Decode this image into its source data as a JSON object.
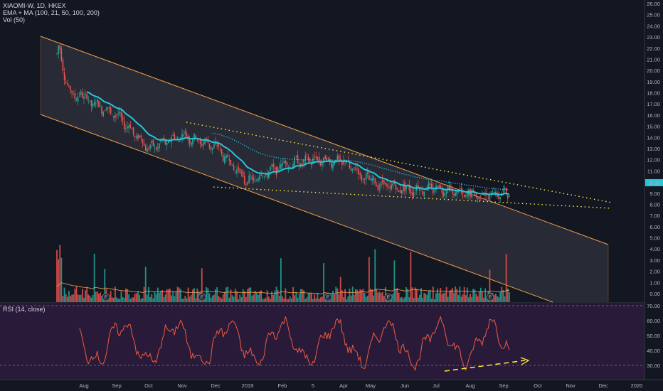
{
  "legend": {
    "symbol": "XIAOMI-W, 1D, HKEX",
    "ma": "EMA + MA (100, 21, 50, 100, 200)",
    "vol": "Vol (50)"
  },
  "rsi_legend": "RSI (14, close)",
  "last_price_label": "9.00",
  "colors": {
    "background": "#131722",
    "rsi_background": "#2a1a3a",
    "channel": "#f0a04b",
    "ema": "#26c6da",
    "ma_dotted": "#26c6da",
    "trendline": "#ffeb3b",
    "up": "#26a69a",
    "down": "#ef5350",
    "rsi_line": "#f05a3c",
    "volume_ma": "#f0a04b",
    "arrow": "#ffeb3b"
  },
  "earnings_marker": "E",
  "chart_data": {
    "type": "candlestick",
    "x_axis_labels": [
      "Aug",
      "Sep",
      "Oct",
      "Nov",
      "Dec",
      "2019",
      "Feb",
      "5",
      "Apr",
      "May",
      "Jun",
      "Jul",
      "Aug",
      "Sep",
      "Oct",
      "Nov",
      "Dec",
      "2020"
    ],
    "price_axis": {
      "ticks": [
        "26.00",
        "25.00",
        "24.00",
        "23.00",
        "22.00",
        "21.00",
        "20.00",
        "19.00",
        "18.00",
        "17.00",
        "16.00",
        "15.00",
        "14.00",
        "13.00",
        "12.00",
        "11.00",
        "10.00",
        "9.00",
        "8.00",
        "7.00",
        "6.00",
        "5.00",
        "4.00",
        "3.00",
        "2.00",
        "1.00",
        "0.00"
      ],
      "ylim": [
        0,
        26
      ]
    },
    "rsi_axis": {
      "ticks": [
        "70.00",
        "60.00",
        "50.00",
        "40.00",
        "30.00"
      ],
      "ylim": [
        25,
        72
      ]
    },
    "price_series": {
      "name": "XIAOMI-W",
      "close_by_month": [
        {
          "month": "Jul 2018",
          "close": 18.5
        },
        {
          "month": "Aug 2018",
          "close": 17.5
        },
        {
          "month": "Sep 2018",
          "close": 16.0
        },
        {
          "month": "Oct 2018",
          "close": 13.0
        },
        {
          "month": "Nov 2018",
          "close": 14.2
        },
        {
          "month": "Dec 2018",
          "close": 13.2
        },
        {
          "month": "Jan 2019",
          "close": 10.0
        },
        {
          "month": "Feb 2019",
          "close": 11.5
        },
        {
          "month": "Mar 2019",
          "close": 12.0
        },
        {
          "month": "Apr 2019",
          "close": 11.8
        },
        {
          "month": "May 2019",
          "close": 10.0
        },
        {
          "month": "Jun 2019",
          "close": 9.3
        },
        {
          "month": "Jul 2019",
          "close": 9.5
        },
        {
          "month": "Aug 2019",
          "close": 8.8
        },
        {
          "month": "Sep 2019",
          "close": 9.0
        }
      ]
    },
    "rsi_range": [
      20,
      68
    ],
    "rsi_levels": [
      30,
      70
    ]
  }
}
